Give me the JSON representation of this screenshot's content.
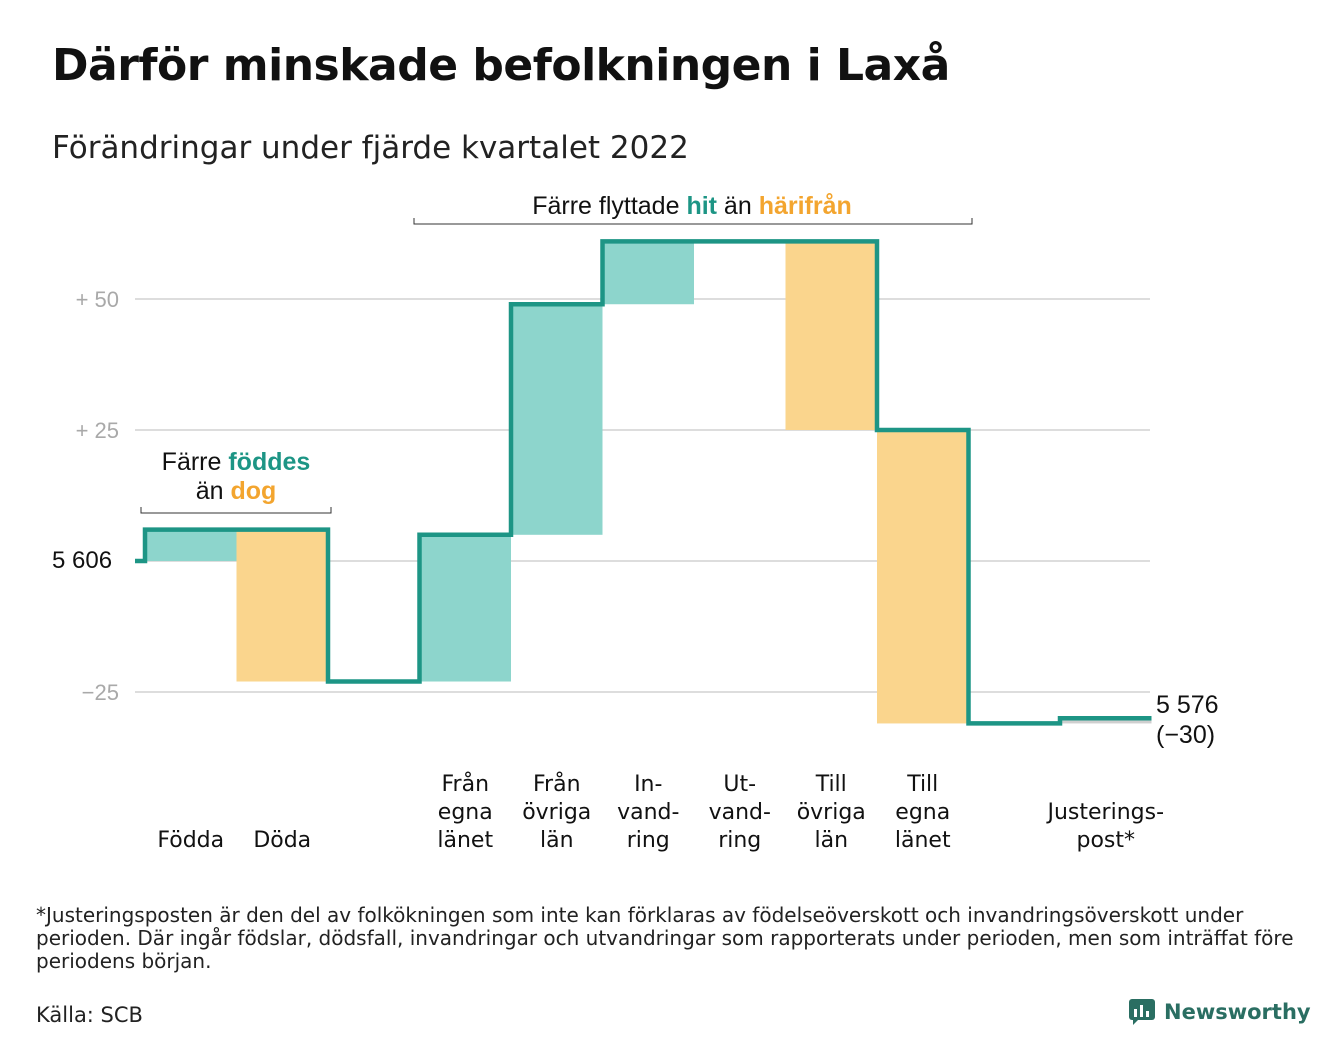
{
  "title": "Därför minskade befolkningen i Laxå",
  "subtitle": "Förändringar under fjärde kvartalet 2022",
  "colors": {
    "increase": "#8dd5cc",
    "decrease": "#fad58d",
    "line": "#1d9585",
    "teal_text": "#1d9585",
    "orange_text": "#f3a52f",
    "grid": "#dddddd",
    "tick": "#a9a9a9"
  },
  "annotations": {
    "births": {
      "line1_a": "Färre ",
      "line1_b": "föddes",
      "line2_a": "än ",
      "line2_b": "dog"
    },
    "migration": {
      "a": "Färre flyttade ",
      "b": "hit",
      "c": " än ",
      "d": "härifrån"
    }
  },
  "chart_data": {
    "type": "waterfall",
    "start_value": 5606,
    "start_label": "5 606",
    "end_label_1": "5 576",
    "end_label_2": "(−30)",
    "ylim": [
      -32,
      62
    ],
    "yticks": [
      {
        "value": 50,
        "label": "+ 50"
      },
      {
        "value": 25,
        "label": "+ 25"
      },
      {
        "value": 0,
        "label": ""
      },
      {
        "value": -25,
        "label": "−25"
      }
    ],
    "steps": [
      {
        "label": [
          "Födda"
        ],
        "change": 6,
        "kind": "increase"
      },
      {
        "label": [
          "Döda"
        ],
        "change": -29,
        "kind": "decrease"
      },
      {
        "label": [
          ""
        ],
        "change": 0,
        "kind": "gap"
      },
      {
        "label": [
          "Från",
          "egna",
          "länet"
        ],
        "change": 28,
        "kind": "increase"
      },
      {
        "label": [
          "Från",
          "övriga",
          "län"
        ],
        "change": 44,
        "kind": "increase"
      },
      {
        "label": [
          "In-",
          "vand-",
          "ring"
        ],
        "change": 12,
        "kind": "increase"
      },
      {
        "label": [
          "Ut-",
          "vand-",
          "ring"
        ],
        "change": 0,
        "kind": "decrease"
      },
      {
        "label": [
          "Till",
          "övriga",
          "län"
        ],
        "change": -36,
        "kind": "decrease"
      },
      {
        "label": [
          "Till",
          "egna",
          "länet"
        ],
        "change": -56,
        "kind": "decrease"
      },
      {
        "label": [
          ""
        ],
        "change": 0,
        "kind": "gap"
      },
      {
        "label": [
          "Justerings-",
          "post*"
        ],
        "change": 1,
        "kind": "adjust"
      }
    ]
  },
  "footnote": "*Justeringsposten är den del av folkökningen som inte kan förklaras av födelseöverskott och invandringsöverskott under perioden. Där ingår födslar, dödsfall, invandringar och utvandringar som rapporterats under perioden, men som inträffat före periodens början.",
  "source": "Källa: SCB",
  "brand": "Newsworthy"
}
